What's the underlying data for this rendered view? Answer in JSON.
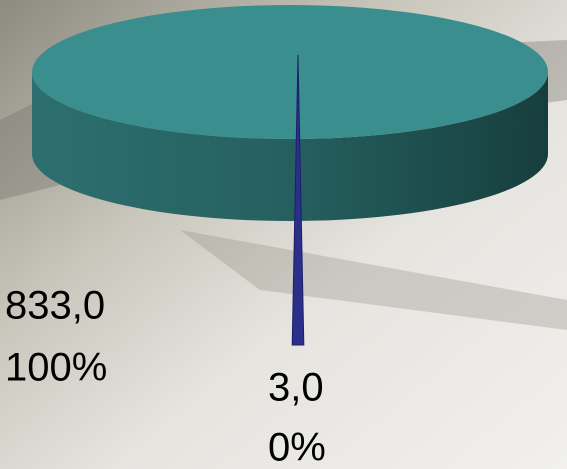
{
  "chart_data": {
    "type": "pie",
    "categories": [
      null,
      null
    ],
    "values": [
      833,
      3
    ],
    "value_labels": [
      "833,0",
      "3,0"
    ],
    "percent_labels": [
      "100%",
      "0%"
    ],
    "colors": [
      "#3a8e8e",
      "#2b2f8a"
    ]
  }
}
